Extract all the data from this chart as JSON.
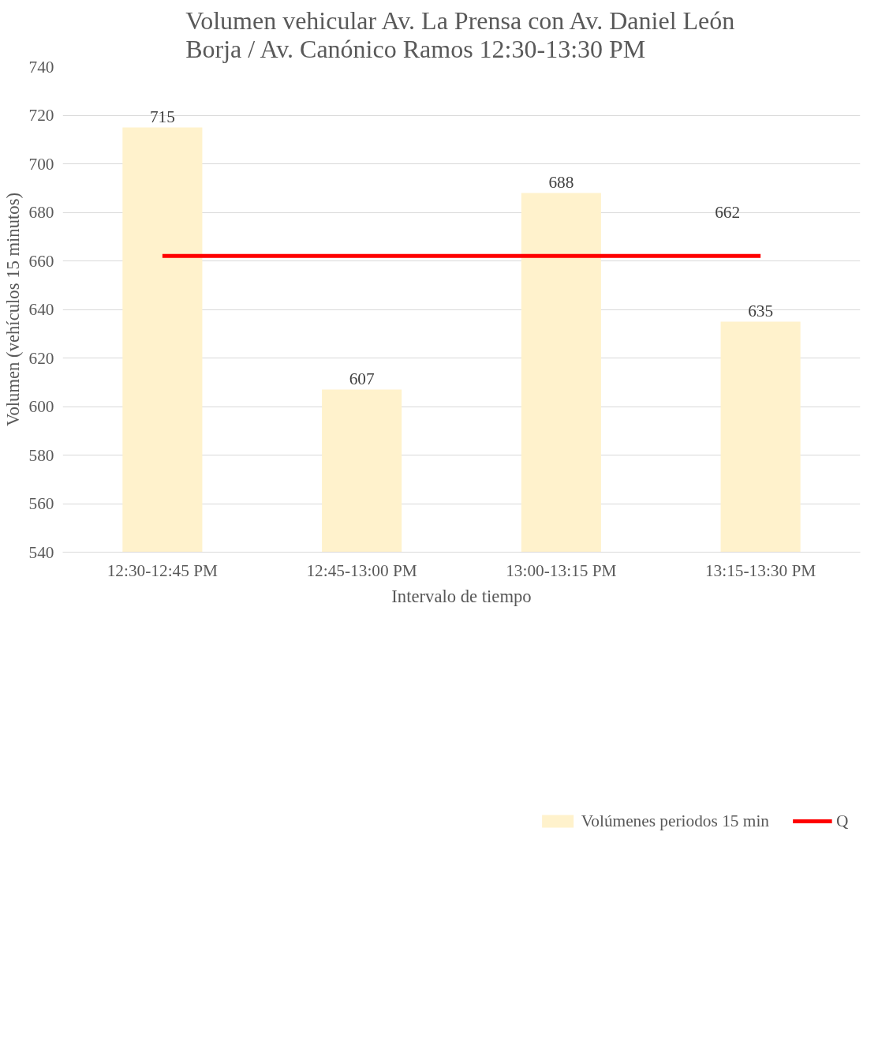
{
  "chart_data": {
    "type": "bar",
    "title": "Volumen vehicular Av. La Prensa con Av. Daniel León Borja / Av. Canónico Ramos 12:30-13:30 PM",
    "xlabel": "Intervalo de tiempo",
    "ylabel": "Volumen (vehículos 15 minutos)",
    "categories": [
      "12:30-12:45 PM",
      "12:45-13:00 PM",
      "13:00-13:15 PM",
      "13:15-13:30 PM"
    ],
    "series": [
      {
        "name": "Volúmenes periodos 15 min",
        "color": "#fff2cc",
        "values": [
          715,
          607,
          688,
          635
        ],
        "value_labels": [
          "715",
          "607",
          "688",
          "635"
        ]
      },
      {
        "name": "Q",
        "type": "line",
        "color": "#ff0000",
        "values": [
          662,
          662,
          662,
          662
        ],
        "value_labels": [
          null,
          null,
          null,
          "662"
        ]
      }
    ],
    "ylim": [
      540,
      740
    ],
    "yticks": [
      540,
      560,
      580,
      600,
      620,
      640,
      660,
      680,
      700,
      720,
      740
    ],
    "grid": "y",
    "legend": "bottom",
    "line_style": "solid",
    "marker": "none"
  }
}
